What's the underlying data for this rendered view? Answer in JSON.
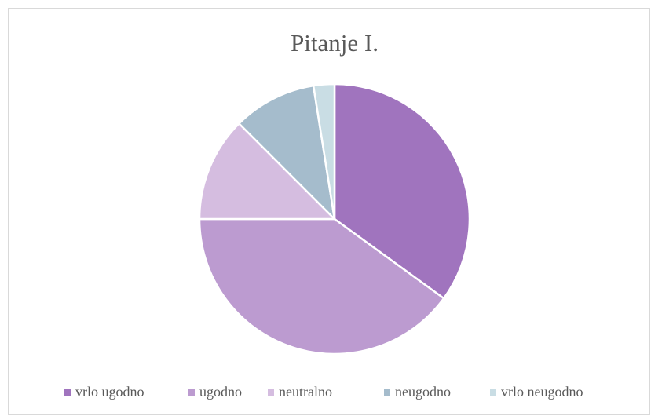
{
  "chart_data": {
    "type": "pie",
    "title": "Pitanje I.",
    "categories": [
      "vrlo ugodno",
      "ugodno",
      "neutralno",
      "neugodno",
      "vrlo neugodno"
    ],
    "values": [
      35,
      40,
      12.5,
      10,
      2.5
    ],
    "colors": [
      "#a074be",
      "#bc9bd0",
      "#d5bde0",
      "#a5bccc",
      "#c9dde4"
    ],
    "legend": "bottom"
  }
}
